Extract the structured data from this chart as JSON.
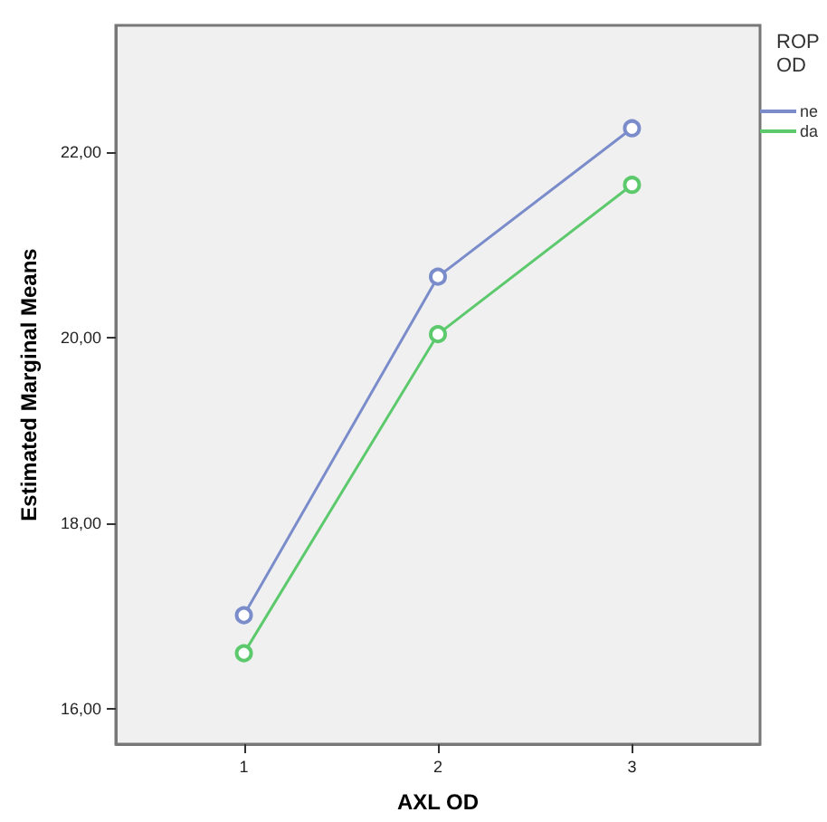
{
  "chart_data": {
    "type": "line",
    "xlabel": "AXL OD",
    "ylabel": "Estimated Marginal Means",
    "legend_title": "ROP OD",
    "x": [
      1,
      2,
      3
    ],
    "series": [
      {
        "name": "ne",
        "color": "#7b8ccb",
        "values": [
          17.01,
          20.66,
          22.26
        ]
      },
      {
        "name": "da",
        "color": "#5dc96d",
        "values": [
          16.6,
          20.04,
          21.65
        ]
      }
    ],
    "xlim": [
      0.34,
      3.66
    ],
    "xticks": [
      1,
      2,
      3
    ],
    "ylim": [
      15.62,
      23.37
    ],
    "yticks": [
      {
        "value": 16,
        "label": "16,00"
      },
      {
        "value": 18,
        "label": "18,00"
      },
      {
        "value": 20,
        "label": "20,00"
      },
      {
        "value": 22,
        "label": "22,00"
      }
    ],
    "grid": false,
    "legend": "top right",
    "marker": "circle",
    "line_style": "solid"
  }
}
